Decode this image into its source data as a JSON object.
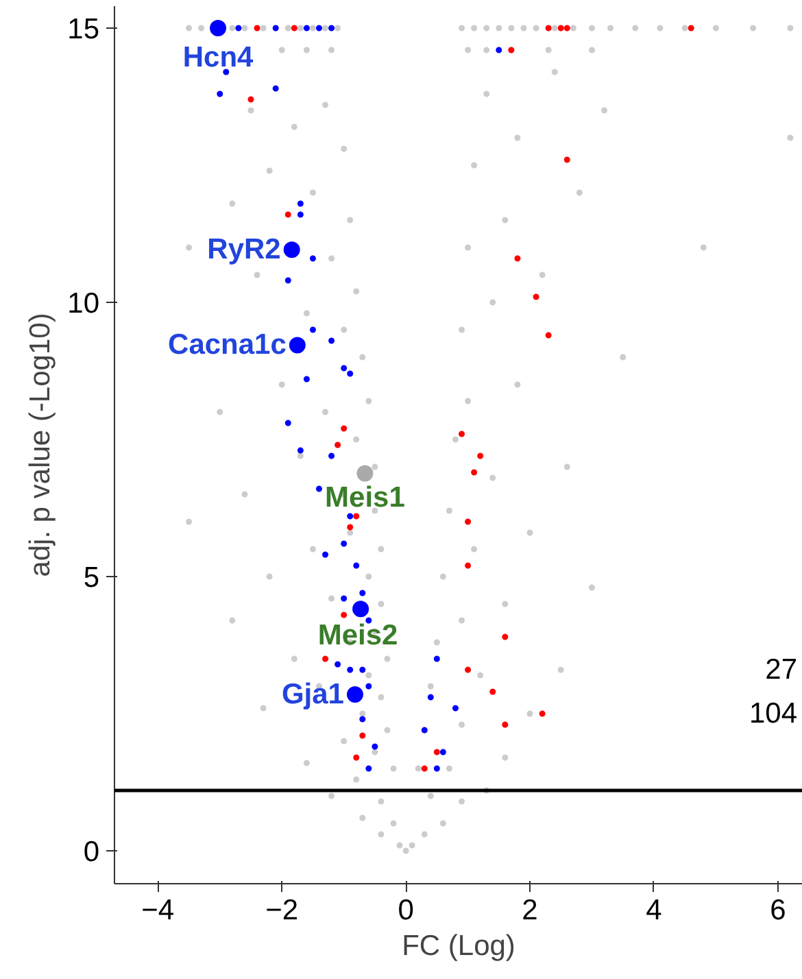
{
  "chart_data": {
    "type": "scatter",
    "xlabel": "FC (Log)",
    "ylabel": "adj. p value (-Log10)",
    "xlim": [
      -4.7,
      6.4
    ],
    "xticks": [
      -4,
      -2,
      0,
      2,
      4,
      6
    ],
    "ylim": [
      -0.6,
      15.4
    ],
    "yticks": [
      0,
      5,
      10,
      15
    ],
    "marker": "circle",
    "ref_lines": [
      {
        "axis": "y",
        "value": 1.1,
        "color": "#000000"
      }
    ],
    "series": [
      {
        "color": "#cccccc",
        "x": [
          -3.5,
          -3.3,
          -2.8,
          -2.6,
          -2.3,
          -2.1,
          -1.9,
          -1.7,
          -1.5,
          -1.3,
          -1.1,
          0.9,
          1.1,
          1.3,
          1.5,
          1.7,
          1.9,
          2.1,
          2.4,
          2.7,
          3.0,
          3.3,
          3.7,
          4.1,
          4.5,
          5.0,
          5.6,
          6.2,
          -2.0,
          -1.6,
          -1.2,
          1.0,
          1.3,
          1.7,
          2.3,
          3.0,
          -2.5,
          -1.8,
          -1.3,
          -1.0,
          -2.2,
          -1.5,
          -0.9,
          -2.8,
          -1.2,
          -0.8,
          -2.4,
          -3.5,
          -1.0,
          -0.7,
          -1.6,
          -2.0,
          -3.0,
          -0.6,
          -1.3,
          -0.8,
          -0.5,
          -1.7,
          -2.6,
          -1.0,
          -0.5,
          -3.5,
          -0.4,
          -0.9,
          -1.5,
          -2.2,
          -0.6,
          -0.4,
          -1.2,
          -2.8,
          -0.5,
          -0.9,
          -1.8,
          -0.3,
          -0.6,
          -1.4,
          -0.4,
          -0.7,
          -2.3,
          -0.3,
          -1.0,
          -0.5,
          -1.6,
          -0.2,
          -0.8,
          -1.2,
          -0.4,
          -0.7,
          -0.2,
          -0.4,
          -0.1,
          0,
          0.1,
          0.3,
          0.6,
          0.9,
          1.3,
          0.4,
          0.2,
          0.7,
          1.6,
          0.3,
          0.9,
          2.0,
          0.4,
          1.2,
          2.5,
          0.5,
          0.9,
          1.6,
          3.0,
          0.6,
          1.1,
          2.0,
          0.7,
          1.4,
          2.6,
          0.8,
          1.0,
          1.8,
          3.5,
          0.9,
          1.4,
          2.2,
          1.0,
          1.6,
          2.8,
          1.1,
          1.8,
          3.2,
          1.3,
          2.4,
          6.2,
          4.8
        ],
        "values": [
          15,
          15,
          15,
          15,
          15,
          15,
          15,
          15,
          15,
          15,
          15,
          15,
          15,
          15,
          15,
          15,
          15,
          15,
          15,
          15,
          15,
          15,
          15,
          15,
          15,
          15,
          15,
          15,
          14.6,
          14.6,
          14.6,
          14.6,
          14.6,
          14.6,
          14.6,
          14.6,
          13.5,
          13.2,
          13.6,
          12.8,
          12.4,
          12.0,
          11.5,
          11.8,
          10.8,
          10.2,
          10.5,
          11,
          9.5,
          9.0,
          9.8,
          8.5,
          8.0,
          8.2,
          8.0,
          7.5,
          7.0,
          7.2,
          6.5,
          6.5,
          6.2,
          6.0,
          5.5,
          5.8,
          5.5,
          5.0,
          5.0,
          4.5,
          4.6,
          4.2,
          4.0,
          3.8,
          3.5,
          3.5,
          3.2,
          3.0,
          2.8,
          2.5,
          2.6,
          2.2,
          2.0,
          1.8,
          1.6,
          1.5,
          1.3,
          1.0,
          0.9,
          0.6,
          0.5,
          0.3,
          0.1,
          0,
          0.1,
          0.3,
          0.5,
          0.9,
          1.1,
          1.0,
          1.5,
          1.5,
          1.7,
          2.2,
          2.3,
          2.5,
          3.0,
          3.2,
          3.3,
          3.8,
          4.2,
          4.5,
          4.8,
          5.0,
          5.5,
          5.8,
          6.2,
          6.8,
          7.0,
          7.5,
          8.2,
          8.5,
          9.0,
          9.5,
          10.0,
          10.5,
          11.0,
          11.5,
          12.0,
          12.5,
          13.0,
          13.5,
          13.8,
          14.2,
          13.0,
          11.0
        ]
      },
      {
        "color": "#0000ff",
        "x": [
          -2.7,
          -2.1,
          -1.6,
          -1.4,
          -1.2,
          -2.9,
          -3.0,
          -2.1,
          -1.7,
          -1.7,
          -1.9,
          -1.5,
          -1.5,
          -1.2,
          -1.6,
          -1.0,
          -0.9,
          -1.9,
          -1.7,
          -1.2,
          -1.4,
          -0.9,
          -1.0,
          -1.3,
          -0.8,
          -1.0,
          -0.7,
          -0.6,
          -1.1,
          -0.9,
          -0.7,
          -0.6,
          -0.7,
          -0.5,
          -0.6,
          1.5,
          0.5,
          0.4,
          0.3,
          0.6,
          0.5,
          0.8
        ],
        "values": [
          15,
          15,
          15,
          15,
          15,
          14.2,
          13.8,
          13.9,
          11.8,
          11.6,
          10.4,
          10.8,
          9.5,
          9.3,
          8.6,
          8.8,
          8.7,
          7.8,
          7.3,
          7.2,
          6.6,
          6.1,
          5.6,
          5.4,
          5.2,
          4.6,
          4.7,
          4.2,
          3.4,
          3.3,
          3.3,
          3.0,
          2.4,
          1.9,
          1.5,
          14.6,
          3.5,
          2.8,
          2.2,
          1.8,
          1.5,
          2.6
        ]
      },
      {
        "color": "#ff0000",
        "x": [
          -2.4,
          -1.8,
          2.3,
          2.5,
          2.6,
          4.6,
          1.7,
          -2.5,
          2.6,
          -1.9,
          1.8,
          2.1,
          2.3,
          -1.0,
          -1.1,
          0.9,
          1.2,
          1.1,
          -0.8,
          -0.9,
          1.0,
          1.0,
          -1.0,
          -1.3,
          1.6,
          1.0,
          1.4,
          2.2,
          -0.7,
          1.6,
          -0.8,
          0.5,
          0.3
        ],
        "values": [
          15,
          15,
          15,
          15,
          15,
          15,
          14.6,
          13.7,
          12.6,
          11.6,
          10.8,
          10.1,
          9.4,
          7.7,
          7.4,
          7.6,
          7.2,
          6.9,
          6.1,
          5.9,
          6.0,
          5.2,
          4.3,
          3.5,
          3.9,
          3.3,
          2.9,
          2.5,
          2.1,
          2.3,
          1.7,
          1.8,
          1.5
        ]
      },
      {
        "color": "#aaaaaa",
        "x": [
          -0.66
        ],
        "values": [
          6.88
        ]
      },
      {
        "color": "#0000ff",
        "x": [
          -3.03,
          -1.84,
          -1.75,
          -0.73,
          -0.82
        ],
        "values": [
          15.0,
          10.96,
          9.22,
          4.41,
          2.85
        ]
      }
    ],
    "annotations": [
      {
        "text": "Hcn4",
        "x": -3.03,
        "y": 15.0
      },
      {
        "text": "RyR2",
        "x": -1.84,
        "y": 10.96
      },
      {
        "text": "Cacna1c",
        "x": -1.75,
        "y": 9.22
      },
      {
        "text": "Meis1",
        "x": -0.66,
        "y": 6.88
      },
      {
        "text": "Meis2",
        "x": -0.73,
        "y": 4.41
      },
      {
        "text": "Gja1",
        "x": -0.82,
        "y": 2.85
      },
      "27",
      "104"
    ]
  }
}
